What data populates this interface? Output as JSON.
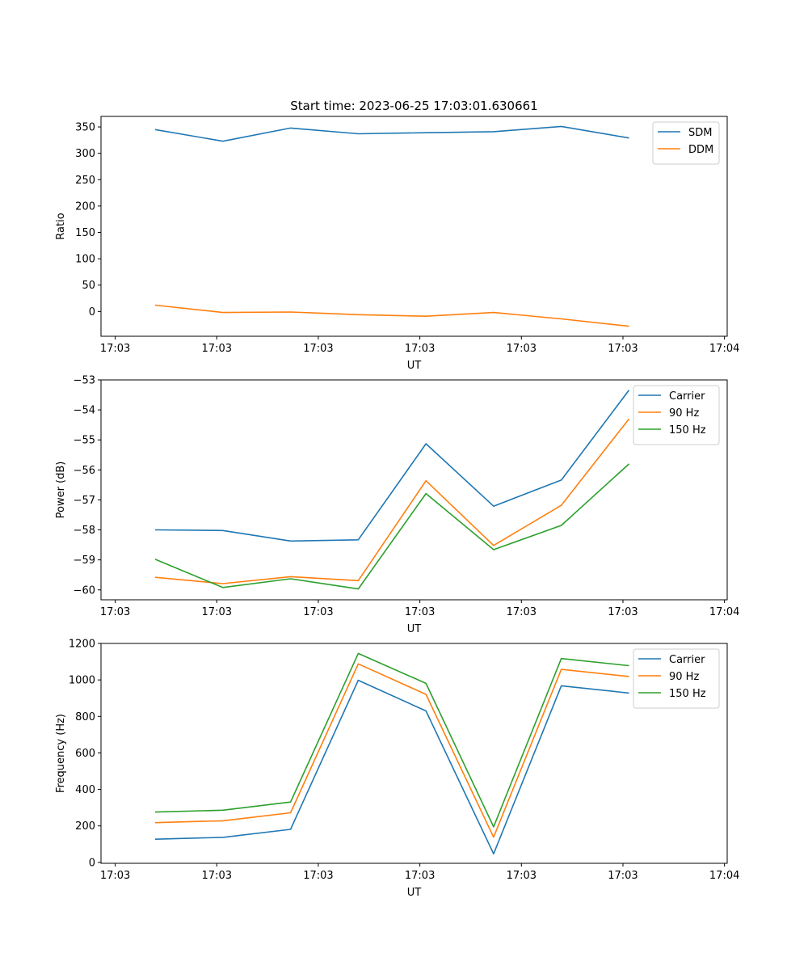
{
  "colors": {
    "c0": "#1f77b4",
    "c1": "#ff7f0e",
    "c2": "#2ca02c"
  },
  "chart_data": [
    {
      "type": "line",
      "title": "Start time: 2023-06-25 17:03:01.630661",
      "xlabel": "UT",
      "ylabel": "Ratio",
      "x": [
        1,
        2,
        3,
        4,
        5,
        6,
        7,
        8
      ],
      "xlim": [
        0.2,
        9.45
      ],
      "xticks": [
        0.41,
        1.91,
        3.41,
        4.91,
        6.41,
        7.91,
        9.41
      ],
      "xticklabels": [
        "17:03",
        "17:03",
        "17:03",
        "17:03",
        "17:03",
        "17:03",
        "17:04"
      ],
      "ylim": [
        -47,
        370
      ],
      "yticks": [
        0,
        50,
        100,
        150,
        200,
        250,
        300,
        350
      ],
      "grid": false,
      "legend_position": "top-right",
      "series": [
        {
          "name": "SDM",
          "color_key": "c0",
          "values": [
            345,
            323,
            348,
            337,
            339,
            341,
            351,
            329
          ]
        },
        {
          "name": "DDM",
          "color_key": "c1",
          "values": [
            12,
            -2,
            -1,
            -6,
            -9,
            -2,
            -14,
            -28
          ]
        }
      ]
    },
    {
      "type": "line",
      "title": "",
      "xlabel": "UT",
      "ylabel": "Power (dB)",
      "x": [
        1,
        2,
        3,
        4,
        5,
        6,
        7,
        8
      ],
      "xlim": [
        0.2,
        9.45
      ],
      "xticks": [
        0.41,
        1.91,
        3.41,
        4.91,
        6.41,
        7.91,
        9.41
      ],
      "xticklabels": [
        "17:03",
        "17:03",
        "17:03",
        "17:03",
        "17:03",
        "17:03",
        "17:04"
      ],
      "ylim": [
        -60.33,
        -53
      ],
      "yticks": [
        -60,
        -59,
        -58,
        -57,
        -56,
        -55,
        -54,
        -53
      ],
      "yticklabels": [
        "−60",
        "−59",
        "−58",
        "−57",
        "−56",
        "−55",
        "−54",
        "−53"
      ],
      "grid": false,
      "legend_position": "top-right",
      "series": [
        {
          "name": "Carrier",
          "color_key": "c0",
          "values": [
            -58.0,
            -58.02,
            -58.37,
            -58.33,
            -55.13,
            -57.21,
            -56.34,
            -53.34
          ]
        },
        {
          "name": "90 Hz",
          "color_key": "c1",
          "values": [
            -59.58,
            -59.79,
            -59.56,
            -59.69,
            -56.36,
            -58.52,
            -57.18,
            -54.3
          ]
        },
        {
          "name": "150 Hz",
          "color_key": "c2",
          "values": [
            -58.98,
            -59.92,
            -59.63,
            -59.97,
            -56.79,
            -58.66,
            -57.85,
            -55.8
          ]
        }
      ]
    },
    {
      "type": "line",
      "title": "",
      "xlabel": "UT",
      "ylabel": "Frequency (Hz)",
      "x": [
        1,
        2,
        3,
        4,
        5,
        6,
        7,
        8
      ],
      "xlim": [
        0.2,
        9.45
      ],
      "xticks": [
        0.41,
        1.91,
        3.41,
        4.91,
        6.41,
        7.91,
        9.41
      ],
      "xticklabels": [
        "17:03",
        "17:03",
        "17:03",
        "17:03",
        "17:03",
        "17:03",
        "17:04"
      ],
      "ylim": [
        -5,
        1200
      ],
      "yticks": [
        0,
        200,
        400,
        600,
        800,
        1000,
        1200
      ],
      "grid": false,
      "legend_position": "top-right",
      "series": [
        {
          "name": "Carrier",
          "color_key": "c0",
          "values": [
            127,
            137,
            181,
            998,
            830,
            47,
            968,
            928
          ]
        },
        {
          "name": "90 Hz",
          "color_key": "c1",
          "values": [
            218,
            228,
            272,
            1088,
            921,
            138,
            1058,
            1019
          ]
        },
        {
          "name": "150 Hz",
          "color_key": "c2",
          "values": [
            276,
            286,
            331,
            1145,
            981,
            195,
            1117,
            1078
          ]
        }
      ]
    }
  ]
}
